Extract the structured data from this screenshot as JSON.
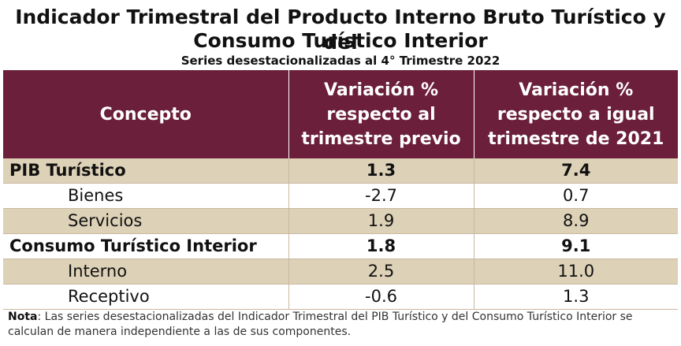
{
  "title_line1": "Indicador Trimestral del Producto Interno Bruto Turístico y del",
  "title_line2": "Consumo Turístico Interior",
  "subtitle": "Series desestacionalizadas al 4° Trimestre 2022",
  "header": {
    "concepto": "Concepto",
    "col2": [
      "Variación %",
      "respecto al",
      "trimestre previo"
    ],
    "col3": [
      "Variación %",
      "respecto a igual",
      "trimestre de 2021"
    ]
  },
  "rows": [
    {
      "concepto": "PIB Turístico",
      "previo": "1.3",
      "anual": "7.4"
    },
    {
      "concepto": "Bienes",
      "previo": "-2.7",
      "anual": "0.7"
    },
    {
      "concepto": "Servicios",
      "previo": "1.9",
      "anual": "8.9"
    },
    {
      "concepto": "Consumo Turístico Interior",
      "previo": "1.8",
      "anual": "9.1"
    },
    {
      "concepto": "Interno",
      "previo": "2.5",
      "anual": "11.0"
    },
    {
      "concepto": "Receptivo",
      "previo": "-0.6",
      "anual": "1.3"
    }
  ],
  "note": {
    "label": "Nota",
    "text": ": Las series desestacionalizadas del Indicador Trimestral del PIB Turístico y del Consumo Turístico Interior se calculan de manera independiente a las de sus componentes."
  },
  "colors": {
    "header_bg": "#6b1f3a",
    "row_shade": "#ddd1b7"
  }
}
